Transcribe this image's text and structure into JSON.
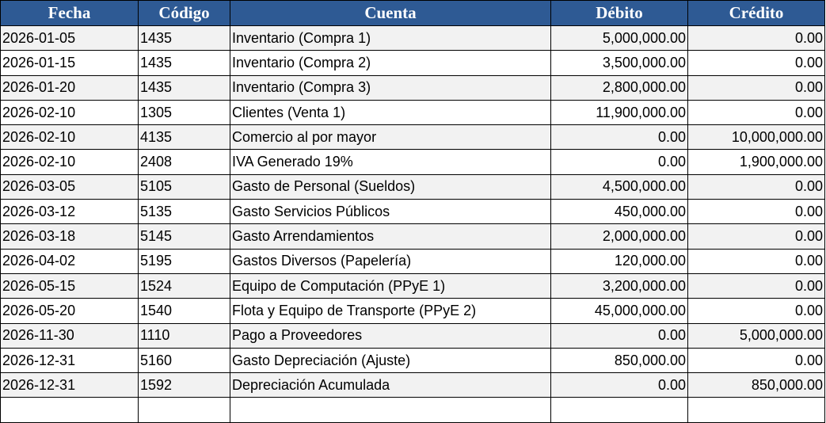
{
  "table": {
    "headers": [
      "Fecha",
      "Código",
      "Cuenta",
      "Débito",
      "Crédito"
    ],
    "rows": [
      [
        "2026-01-05",
        "1435",
        "Inventario (Compra 1)",
        "5,000,000.00",
        "0.00"
      ],
      [
        "2026-01-15",
        "1435",
        "Inventario (Compra 2)",
        "3,500,000.00",
        "0.00"
      ],
      [
        "2026-01-20",
        "1435",
        "Inventario (Compra 3)",
        "2,800,000.00",
        "0.00"
      ],
      [
        "2026-02-10",
        "1305",
        "Clientes (Venta 1)",
        "11,900,000.00",
        "0.00"
      ],
      [
        "2026-02-10",
        "4135",
        "Comercio al por mayor",
        "0.00",
        "10,000,000.00"
      ],
      [
        "2026-02-10",
        "2408",
        "IVA Generado 19%",
        "0.00",
        "1,900,000.00"
      ],
      [
        "2026-03-05",
        "5105",
        "Gasto de Personal (Sueldos)",
        "4,500,000.00",
        "0.00"
      ],
      [
        "2026-03-12",
        "5135",
        "Gasto Servicios Públicos",
        "450,000.00",
        "0.00"
      ],
      [
        "2026-03-18",
        "5145",
        "Gasto Arrendamientos",
        "2,000,000.00",
        "0.00"
      ],
      [
        "2026-04-02",
        "5195",
        "Gastos Diversos (Papelería)",
        "120,000.00",
        "0.00"
      ],
      [
        "2026-05-15",
        "1524",
        "Equipo de Computación (PPyE 1)",
        "3,200,000.00",
        "0.00"
      ],
      [
        "2026-05-20",
        "1540",
        "Flota y Equipo de Transporte (PPyE 2)",
        "45,000,000.00",
        "0.00"
      ],
      [
        "2026-11-30",
        "1110",
        "Pago a Proveedores",
        "0.00",
        "5,000,000.00"
      ],
      [
        "2026-12-31",
        "5160",
        "Gasto Depreciación (Ajuste)",
        "850,000.00",
        "0.00"
      ],
      [
        "2026-12-31",
        "1592",
        "Depreciación Acumulada",
        "0.00",
        "850,000.00"
      ]
    ]
  }
}
